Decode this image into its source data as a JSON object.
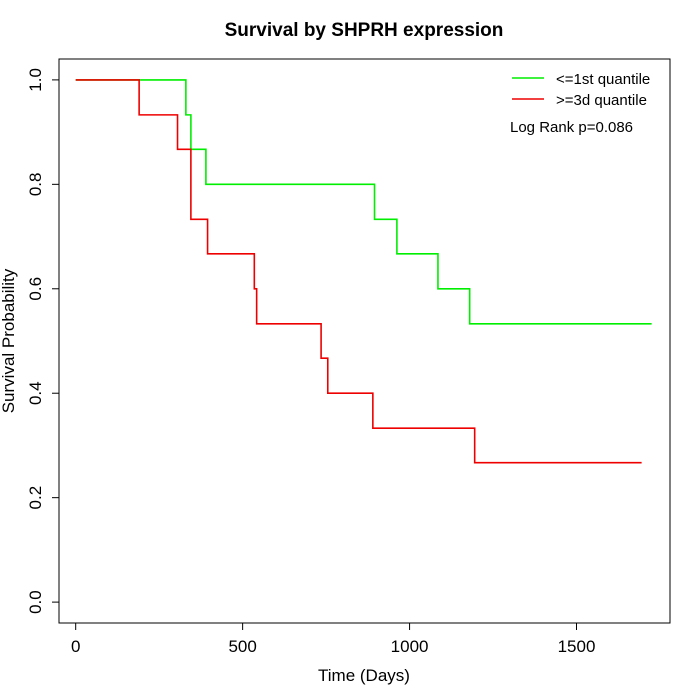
{
  "chart_data": {
    "type": "line",
    "title": "Survival by SHPRH expression",
    "xlabel": "Time (Days)",
    "ylabel": "Survival Probability",
    "xlim": [
      -50,
      1780
    ],
    "ylim": [
      -0.04,
      1.04
    ],
    "xticks": [
      0,
      500,
      1000,
      1500
    ],
    "yticks": [
      0.0,
      0.2,
      0.4,
      0.6,
      0.8,
      1.0
    ],
    "xtick_labels": [
      "0",
      "500",
      "1000",
      "1500"
    ],
    "ytick_labels": [
      "0.0",
      "0.2",
      "0.4",
      "0.6",
      "0.8",
      "1.0"
    ],
    "grid": false,
    "legend_position": "top-right",
    "annotation": "Log Rank p=0.086",
    "series": [
      {
        "name": "<=1st quantile",
        "color": "#00ee00",
        "step": true,
        "x": [
          0,
          330,
          345,
          390,
          895,
          962,
          1085,
          1180,
          1725
        ],
        "y": [
          1.0,
          0.933,
          0.867,
          0.8,
          0.733,
          0.667,
          0.6,
          0.533,
          0.533
        ]
      },
      {
        "name": ">=3d quantile",
        "color": "#ee0000",
        "step": true,
        "x": [
          0,
          190,
          305,
          345,
          395,
          535,
          542,
          735,
          755,
          890,
          1195,
          1695
        ],
        "y": [
          1.0,
          0.933,
          0.867,
          0.733,
          0.667,
          0.6,
          0.533,
          0.467,
          0.4,
          0.333,
          0.267,
          0.267
        ]
      }
    ]
  }
}
